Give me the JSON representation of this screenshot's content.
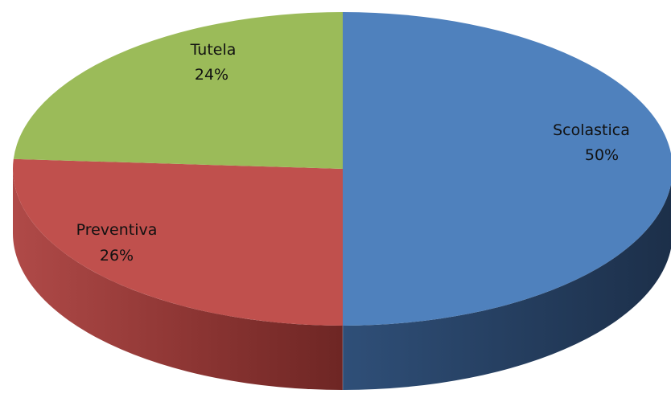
{
  "chart_data": {
    "type": "pie",
    "style": "3d",
    "slices": [
      {
        "label": "Scolastica",
        "value": 50,
        "value_label": "50%",
        "color": "#4f81bd"
      },
      {
        "label": "Preventiva",
        "value": 26,
        "value_label": "26%",
        "color": "#c0504d"
      },
      {
        "label": "Tutela",
        "value": 24,
        "value_label": "24%",
        "color": "#9bbb59"
      }
    ]
  }
}
